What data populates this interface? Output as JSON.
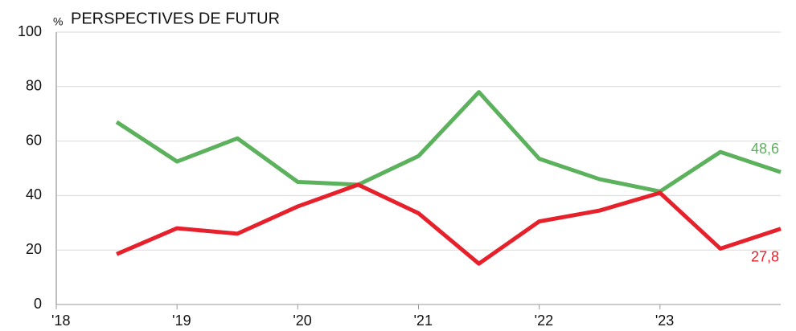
{
  "chart_data": {
    "type": "line",
    "title": "PERSPECTIVES DE FUTUR",
    "y_label": "%",
    "x": [
      2018.5,
      2019,
      2019.5,
      2020,
      2020.5,
      2021,
      2021.5,
      2022,
      2022.5,
      2023,
      2023.5,
      2024
    ],
    "series": [
      {
        "color": "#5cb15c",
        "values": [
          67,
          52.5,
          61,
          45,
          44,
          54.5,
          78,
          53.5,
          46,
          41.5,
          56,
          48.6
        ],
        "value_labels": [
          null,
          null,
          null,
          null,
          null,
          null,
          null,
          null,
          null,
          null,
          null,
          "48,6"
        ]
      },
      {
        "color": "#e6212c",
        "values": [
          18.5,
          28,
          26,
          36,
          44,
          33.5,
          15,
          30.5,
          34.5,
          41,
          20.5,
          27.8
        ],
        "value_labels": [
          null,
          null,
          null,
          null,
          null,
          null,
          null,
          null,
          null,
          null,
          null,
          "27,8"
        ]
      }
    ],
    "xlim": [
      2018,
      2024
    ],
    "xticks": [
      {
        "value": 2018,
        "label": "'18"
      },
      {
        "value": 2019,
        "label": "'19"
      },
      {
        "value": 2020,
        "label": "'20"
      },
      {
        "value": 2021,
        "label": "'21"
      },
      {
        "value": 2022,
        "label": "'22"
      },
      {
        "value": 2023,
        "label": "'23"
      }
    ],
    "ylim": [
      0,
      100
    ],
    "yticks": [
      0,
      20,
      40,
      60,
      80,
      100
    ],
    "grid": true
  }
}
